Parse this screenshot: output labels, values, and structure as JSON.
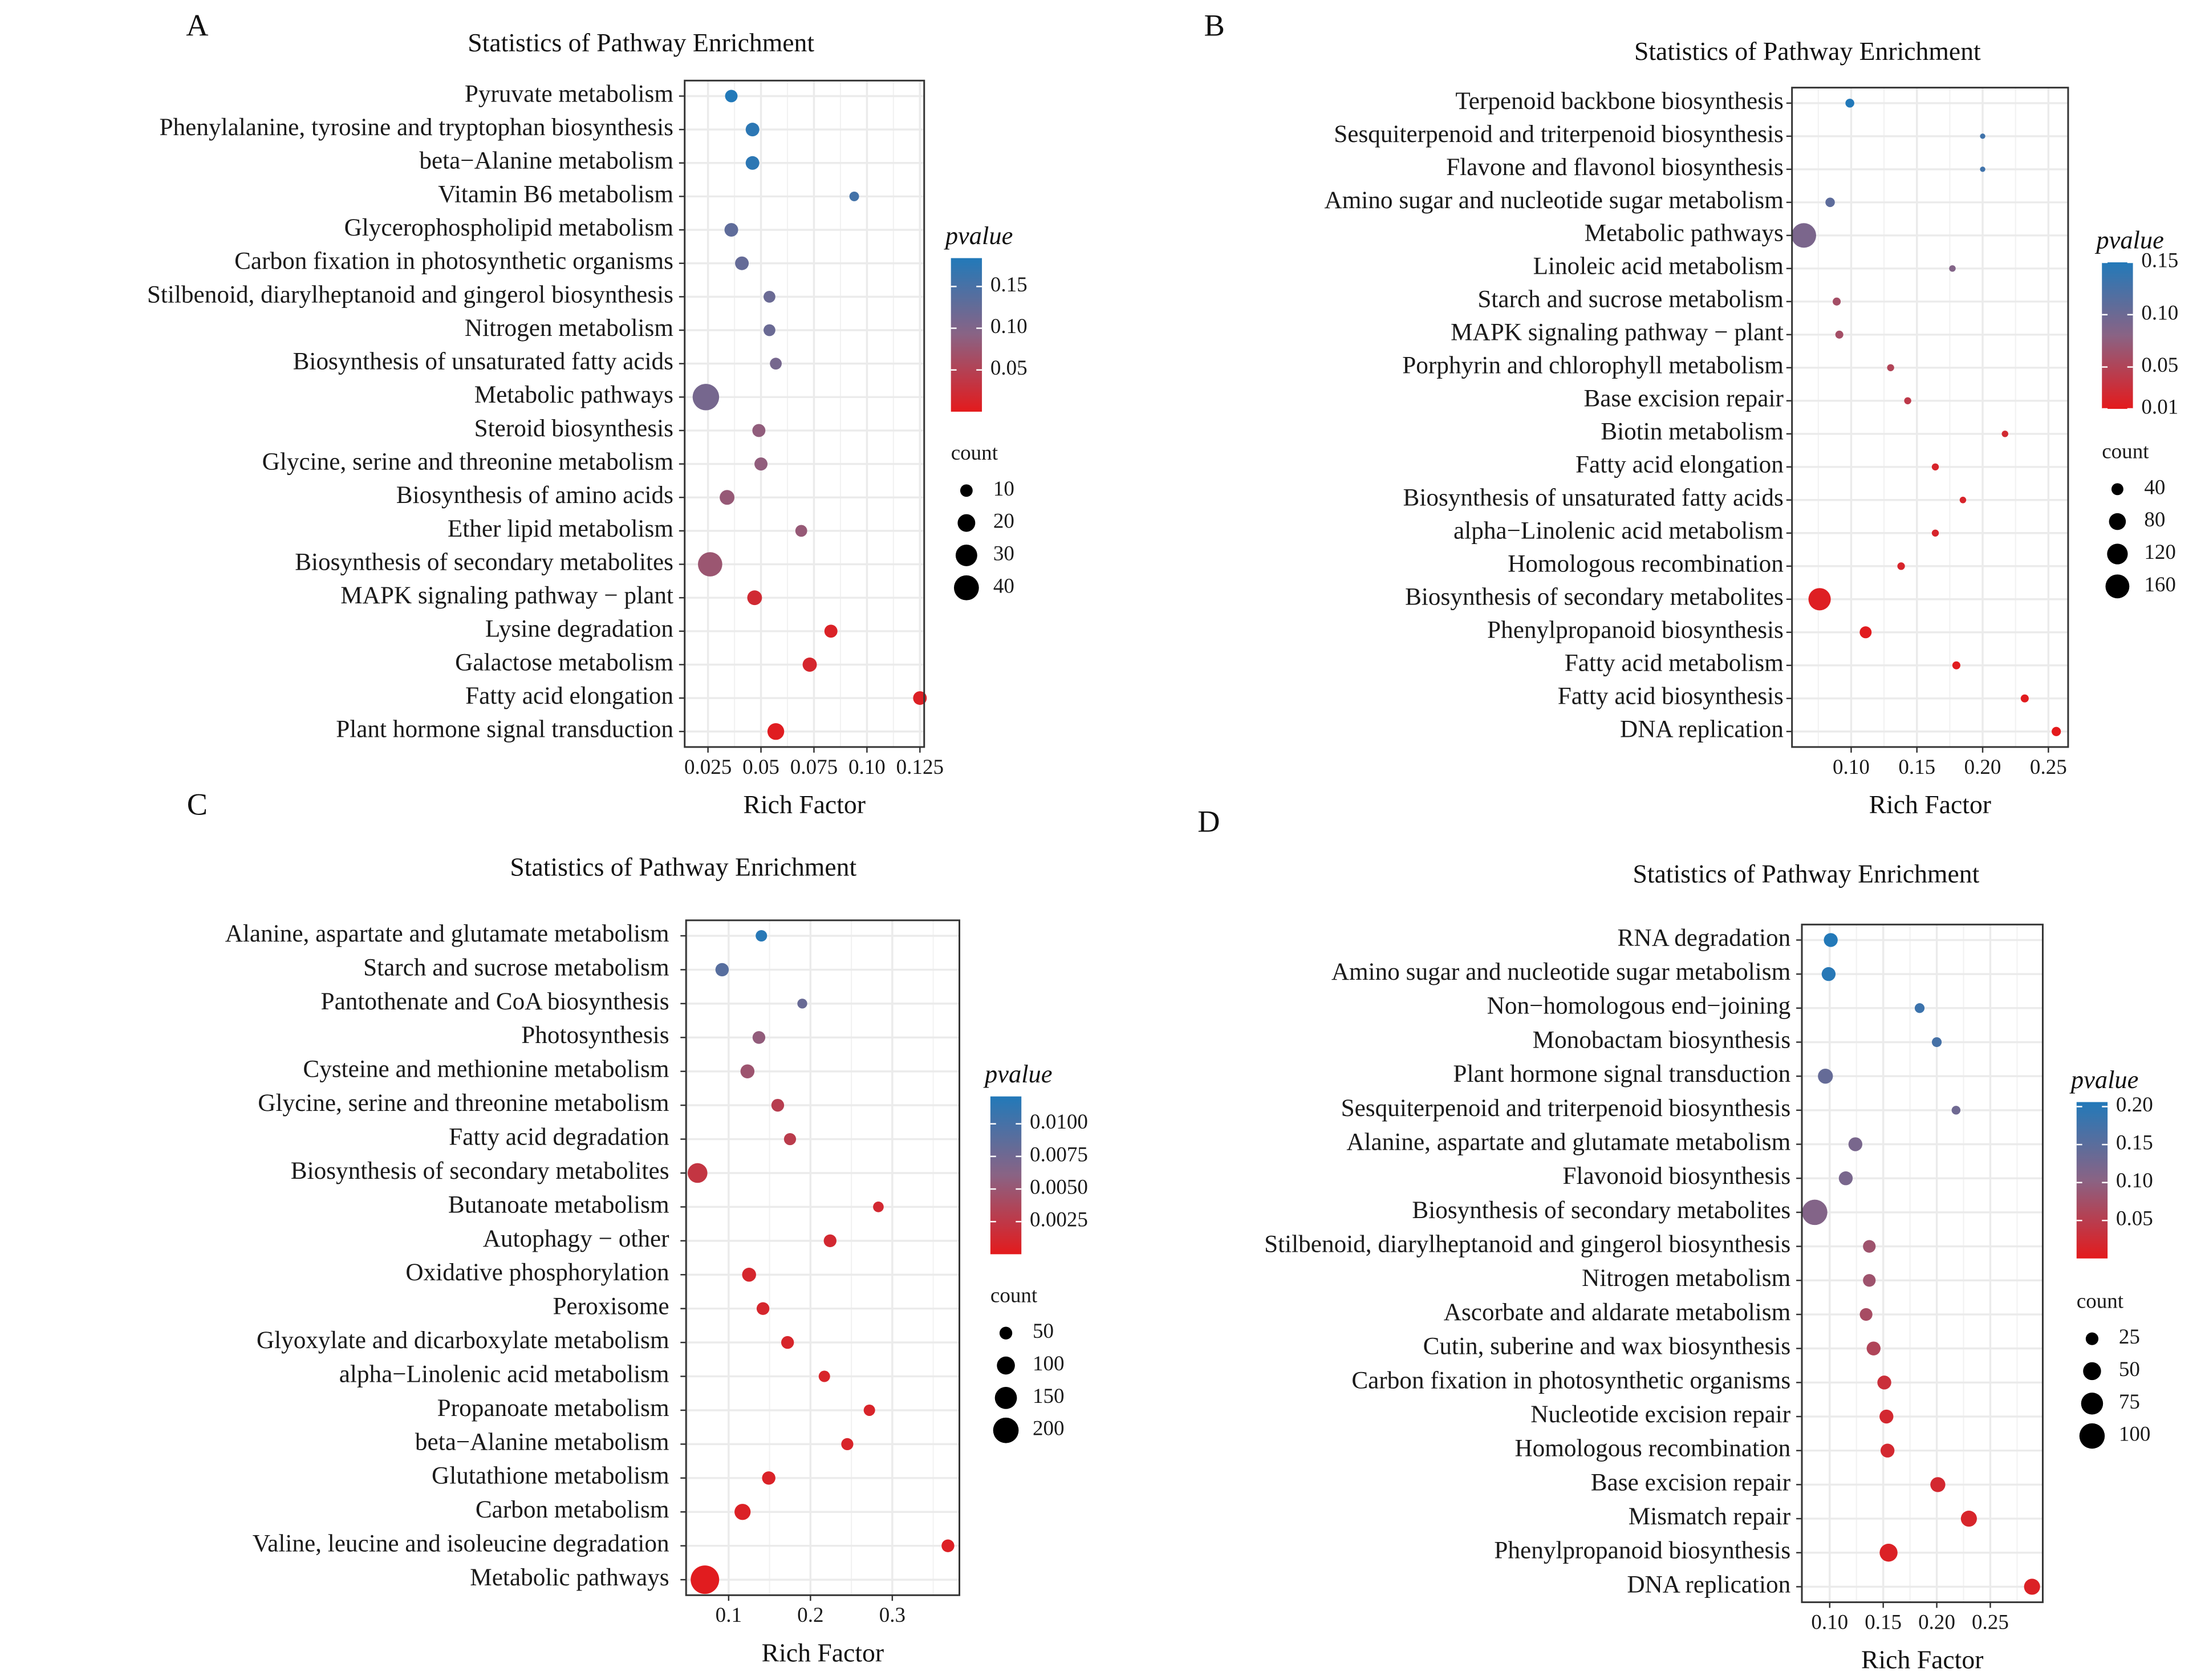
{
  "chart_data": [
    {
      "panel": "A",
      "type": "scatter",
      "title": "Statistics of Pathway Enrichment",
      "xlabel": "Rich Factor",
      "ylabel": "",
      "xlim": [
        0.014,
        0.127
      ],
      "xticks": [
        0.025,
        0.05,
        0.075,
        0.1,
        0.125
      ],
      "xtick_labels": [
        "0.025",
        "0.05",
        "0.075",
        "0.10",
        "0.125"
      ],
      "color_legend": {
        "title": "pvalue",
        "range": [
          0,
          0.184
        ],
        "ticks": [
          0.15,
          0.1,
          0.05
        ],
        "tick_labels": [
          "0.15",
          "0.10",
          "0.05"
        ]
      },
      "size_legend": {
        "title": "count",
        "values": [
          10,
          20,
          30,
          40
        ],
        "labels": [
          "10",
          "20",
          "30",
          "40"
        ]
      },
      "pathways": [
        "Pyruvate metabolism",
        "Phenylalanine, tyrosine and tryptophan biosynthesis",
        "beta−Alanine metabolism",
        "Vitamin B6 metabolism",
        "Glycerophospholipid metabolism",
        "Carbon fixation in photosynthetic organisms",
        "Stilbenoid, diarylheptanoid and gingerol biosynthesis",
        "Nitrogen metabolism",
        "Biosynthesis of unsaturated fatty acids",
        "Metabolic pathways",
        "Steroid biosynthesis",
        "Glycine, serine and threonine metabolism",
        "Biosynthesis of amino acids",
        "Ether lipid metabolism",
        "Biosynthesis of secondary metabolites",
        "MAPK signaling pathway − plant",
        "Lysine degradation",
        "Galactose metabolism",
        "Fatty acid elongation",
        "Plant hormone signal transduction"
      ],
      "rich_factor": [
        0.036,
        0.046,
        0.046,
        0.094,
        0.036,
        0.041,
        0.054,
        0.054,
        0.057,
        0.024,
        0.049,
        0.05,
        0.034,
        0.069,
        0.026,
        0.047,
        0.083,
        0.073,
        0.125,
        0.057
      ],
      "pvalue": [
        0.184,
        0.175,
        0.175,
        0.155,
        0.13,
        0.125,
        0.12,
        0.12,
        0.11,
        0.11,
        0.085,
        0.085,
        0.08,
        0.08,
        0.075,
        0.02,
        0.01,
        0.015,
        0.008,
        0.004
      ],
      "count": [
        10,
        12,
        12,
        6,
        12,
        12,
        9,
        9,
        9,
        45,
        11,
        11,
        14,
        9,
        38,
        14,
        11,
        13,
        12,
        18
      ]
    },
    {
      "panel": "B",
      "type": "scatter",
      "title": "Statistics of Pathway Enrichment",
      "xlabel": "Rich Factor",
      "ylabel": "",
      "xlim": [
        0.055,
        0.265
      ],
      "xticks": [
        0.1,
        0.15,
        0.2,
        0.25
      ],
      "xtick_labels": [
        "0.10",
        "0.15",
        "0.20",
        "0.25"
      ],
      "color_legend": {
        "title": "pvalue",
        "range": [
          0.01,
          0.15
        ],
        "ticks": [
          0.15,
          0.1,
          0.05,
          0.01
        ],
        "tick_labels": [
          "0.15",
          "0.10",
          "0.05",
          "0.01"
        ]
      },
      "size_legend": {
        "title": "count",
        "values": [
          40,
          80,
          120,
          160
        ],
        "labels": [
          "40",
          "80",
          "120",
          "160"
        ]
      },
      "pathways": [
        "Terpenoid backbone biosynthesis",
        "Sesquiterpenoid and triterpenoid biosynthesis",
        "Flavone and flavonol biosynthesis",
        "Amino sugar and nucleotide sugar metabolism",
        "Metabolic pathways",
        "Linoleic acid metabolism",
        "Starch and sucrose metabolism",
        "MAPK signaling pathway − plant",
        "Porphyrin and chlorophyll metabolism",
        "Base excision repair",
        "Biotin metabolism",
        "Fatty acid elongation",
        "Biosynthesis of unsaturated fatty acids",
        "alpha−Linolenic acid metabolism",
        "Homologous recombination",
        "Biosynthesis of secondary metabolites",
        "Phenylpropanoid biosynthesis",
        "Fatty acid metabolism",
        "Fatty acid biosynthesis",
        "DNA replication"
      ],
      "rich_factor": [
        0.099,
        0.2,
        0.2,
        0.084,
        0.064,
        0.177,
        0.089,
        0.091,
        0.13,
        0.143,
        0.217,
        0.164,
        0.185,
        0.164,
        0.138,
        0.076,
        0.111,
        0.18,
        0.232,
        0.256
      ],
      "pvalue": [
        0.15,
        0.13,
        0.13,
        0.11,
        0.09,
        0.085,
        0.06,
        0.06,
        0.05,
        0.04,
        0.025,
        0.02,
        0.02,
        0.02,
        0.02,
        0.015,
        0.012,
        0.012,
        0.012,
        0.01
      ],
      "count": [
        22,
        8,
        8,
        25,
        170,
        12,
        18,
        18,
        14,
        14,
        12,
        14,
        12,
        14,
        16,
        140,
        40,
        18,
        18,
        24
      ]
    },
    {
      "panel": "C",
      "type": "scatter",
      "title": "Statistics of Pathway Enrichment",
      "xlabel": "Rich Factor",
      "ylabel": "",
      "xlim": [
        0.048,
        0.382
      ],
      "xticks": [
        0.1,
        0.2,
        0.3
      ],
      "xtick_labels": [
        "0.1",
        "0.2",
        "0.3"
      ],
      "color_legend": {
        "title": "pvalue",
        "range": [
          0,
          0.0121
        ],
        "ticks": [
          0.01,
          0.0075,
          0.005,
          0.0025
        ],
        "tick_labels": [
          "0.0100",
          "0.0075",
          "0.0050",
          "0.0025"
        ]
      },
      "size_legend": {
        "title": "count",
        "values": [
          50,
          100,
          150,
          200
        ],
        "labels": [
          "50",
          "100",
          "150",
          "200"
        ]
      },
      "pathways": [
        "Alanine, aspartate and glutamate metabolism",
        "Starch and sucrose metabolism",
        "Pantothenate and CoA biosynthesis",
        "Photosynthesis",
        "Cysteine and methionine metabolism",
        "Glycine, serine and threonine metabolism",
        "Fatty acid degradation",
        "Biosynthesis of secondary metabolites",
        "Butanoate metabolism",
        "Autophagy − other",
        "Oxidative phosphorylation",
        "Peroxisome",
        "Glyoxylate and dicarboxylate metabolism",
        "alpha−Linolenic acid metabolism",
        "Propanoate metabolism",
        "beta−Alanine metabolism",
        "Glutathione metabolism",
        "Carbon metabolism",
        "Valine, leucine and isoleucine degradation",
        "Metabolic pathways"
      ],
      "rich_factor": [
        0.14,
        0.092,
        0.19,
        0.137,
        0.123,
        0.16,
        0.175,
        0.062,
        0.283,
        0.224,
        0.125,
        0.142,
        0.172,
        0.217,
        0.272,
        0.245,
        0.149,
        0.117,
        0.368,
        0.071
      ],
      "pvalue": [
        0.0118,
        0.009,
        0.008,
        0.0055,
        0.0048,
        0.003,
        0.0028,
        0.0022,
        0.0012,
        0.0012,
        0.001,
        0.001,
        0.0009,
        0.0008,
        0.0008,
        0.0008,
        0.0007,
        0.0006,
        0.0005,
        0.0002
      ],
      "count": [
        40,
        55,
        30,
        50,
        60,
        50,
        45,
        120,
        35,
        50,
        60,
        50,
        50,
        40,
        40,
        45,
        55,
        80,
        50,
        250
      ]
    },
    {
      "panel": "D",
      "type": "scatter",
      "title": "Statistics of Pathway Enrichment",
      "xlabel": "Rich Factor",
      "ylabel": "",
      "xlim": [
        0.074,
        0.299
      ],
      "xticks": [
        0.1,
        0.15,
        0.2,
        0.25
      ],
      "xtick_labels": [
        "0.10",
        "0.15",
        "0.20",
        "0.25"
      ],
      "color_legend": {
        "title": "pvalue",
        "range": [
          0,
          0.206
        ],
        "ticks": [
          0.2,
          0.15,
          0.1,
          0.05
        ],
        "tick_labels": [
          "0.20",
          "0.15",
          "0.10",
          "0.05"
        ]
      },
      "size_legend": {
        "title": "count",
        "values": [
          25,
          50,
          75,
          100
        ],
        "labels": [
          "25",
          "50",
          "75",
          "100"
        ]
      },
      "pathways": [
        "RNA degradation",
        "Amino sugar and nucleotide sugar metabolism",
        "Non−homologous end−joining",
        "Monobactam biosynthesis",
        "Plant hormone signal transduction",
        "Sesquiterpenoid and triterpenoid biosynthesis",
        "Alanine, aspartate and glutamate metabolism",
        "Flavonoid biosynthesis",
        "Biosynthesis of secondary metabolites",
        "Stilbenoid, diarylheptanoid and gingerol biosynthesis",
        "Nitrogen metabolism",
        "Ascorbate and aldarate metabolism",
        "Cutin, suberine and wax biosynthesis",
        "Carbon fixation in photosynthetic organisms",
        "Nucleotide excision repair",
        "Homologous recombination",
        "Base excision repair",
        "Mismatch repair",
        "Phenylpropanoid biosynthesis",
        "DNA replication"
      ],
      "rich_factor": [
        0.101,
        0.099,
        0.184,
        0.2,
        0.096,
        0.218,
        0.124,
        0.115,
        0.086,
        0.137,
        0.137,
        0.134,
        0.141,
        0.151,
        0.153,
        0.154,
        0.201,
        0.23,
        0.155,
        0.289
      ],
      "pvalue": [
        0.205,
        0.2,
        0.18,
        0.17,
        0.14,
        0.13,
        0.12,
        0.12,
        0.11,
        0.08,
        0.08,
        0.07,
        0.06,
        0.03,
        0.02,
        0.02,
        0.02,
        0.015,
        0.01,
        0.01
      ],
      "count": [
        30,
        30,
        15,
        15,
        35,
        12,
        30,
        30,
        100,
        25,
        25,
        25,
        30,
        30,
        30,
        30,
        35,
        40,
        50,
        40
      ]
    }
  ],
  "panel_letters": [
    "A",
    "B",
    "C",
    "D"
  ],
  "colors": {
    "low": "#e41a1c",
    "mid": "#8a6384",
    "high": "#2279b9",
    "grid": "#ebebeb",
    "frame": "#333333"
  }
}
